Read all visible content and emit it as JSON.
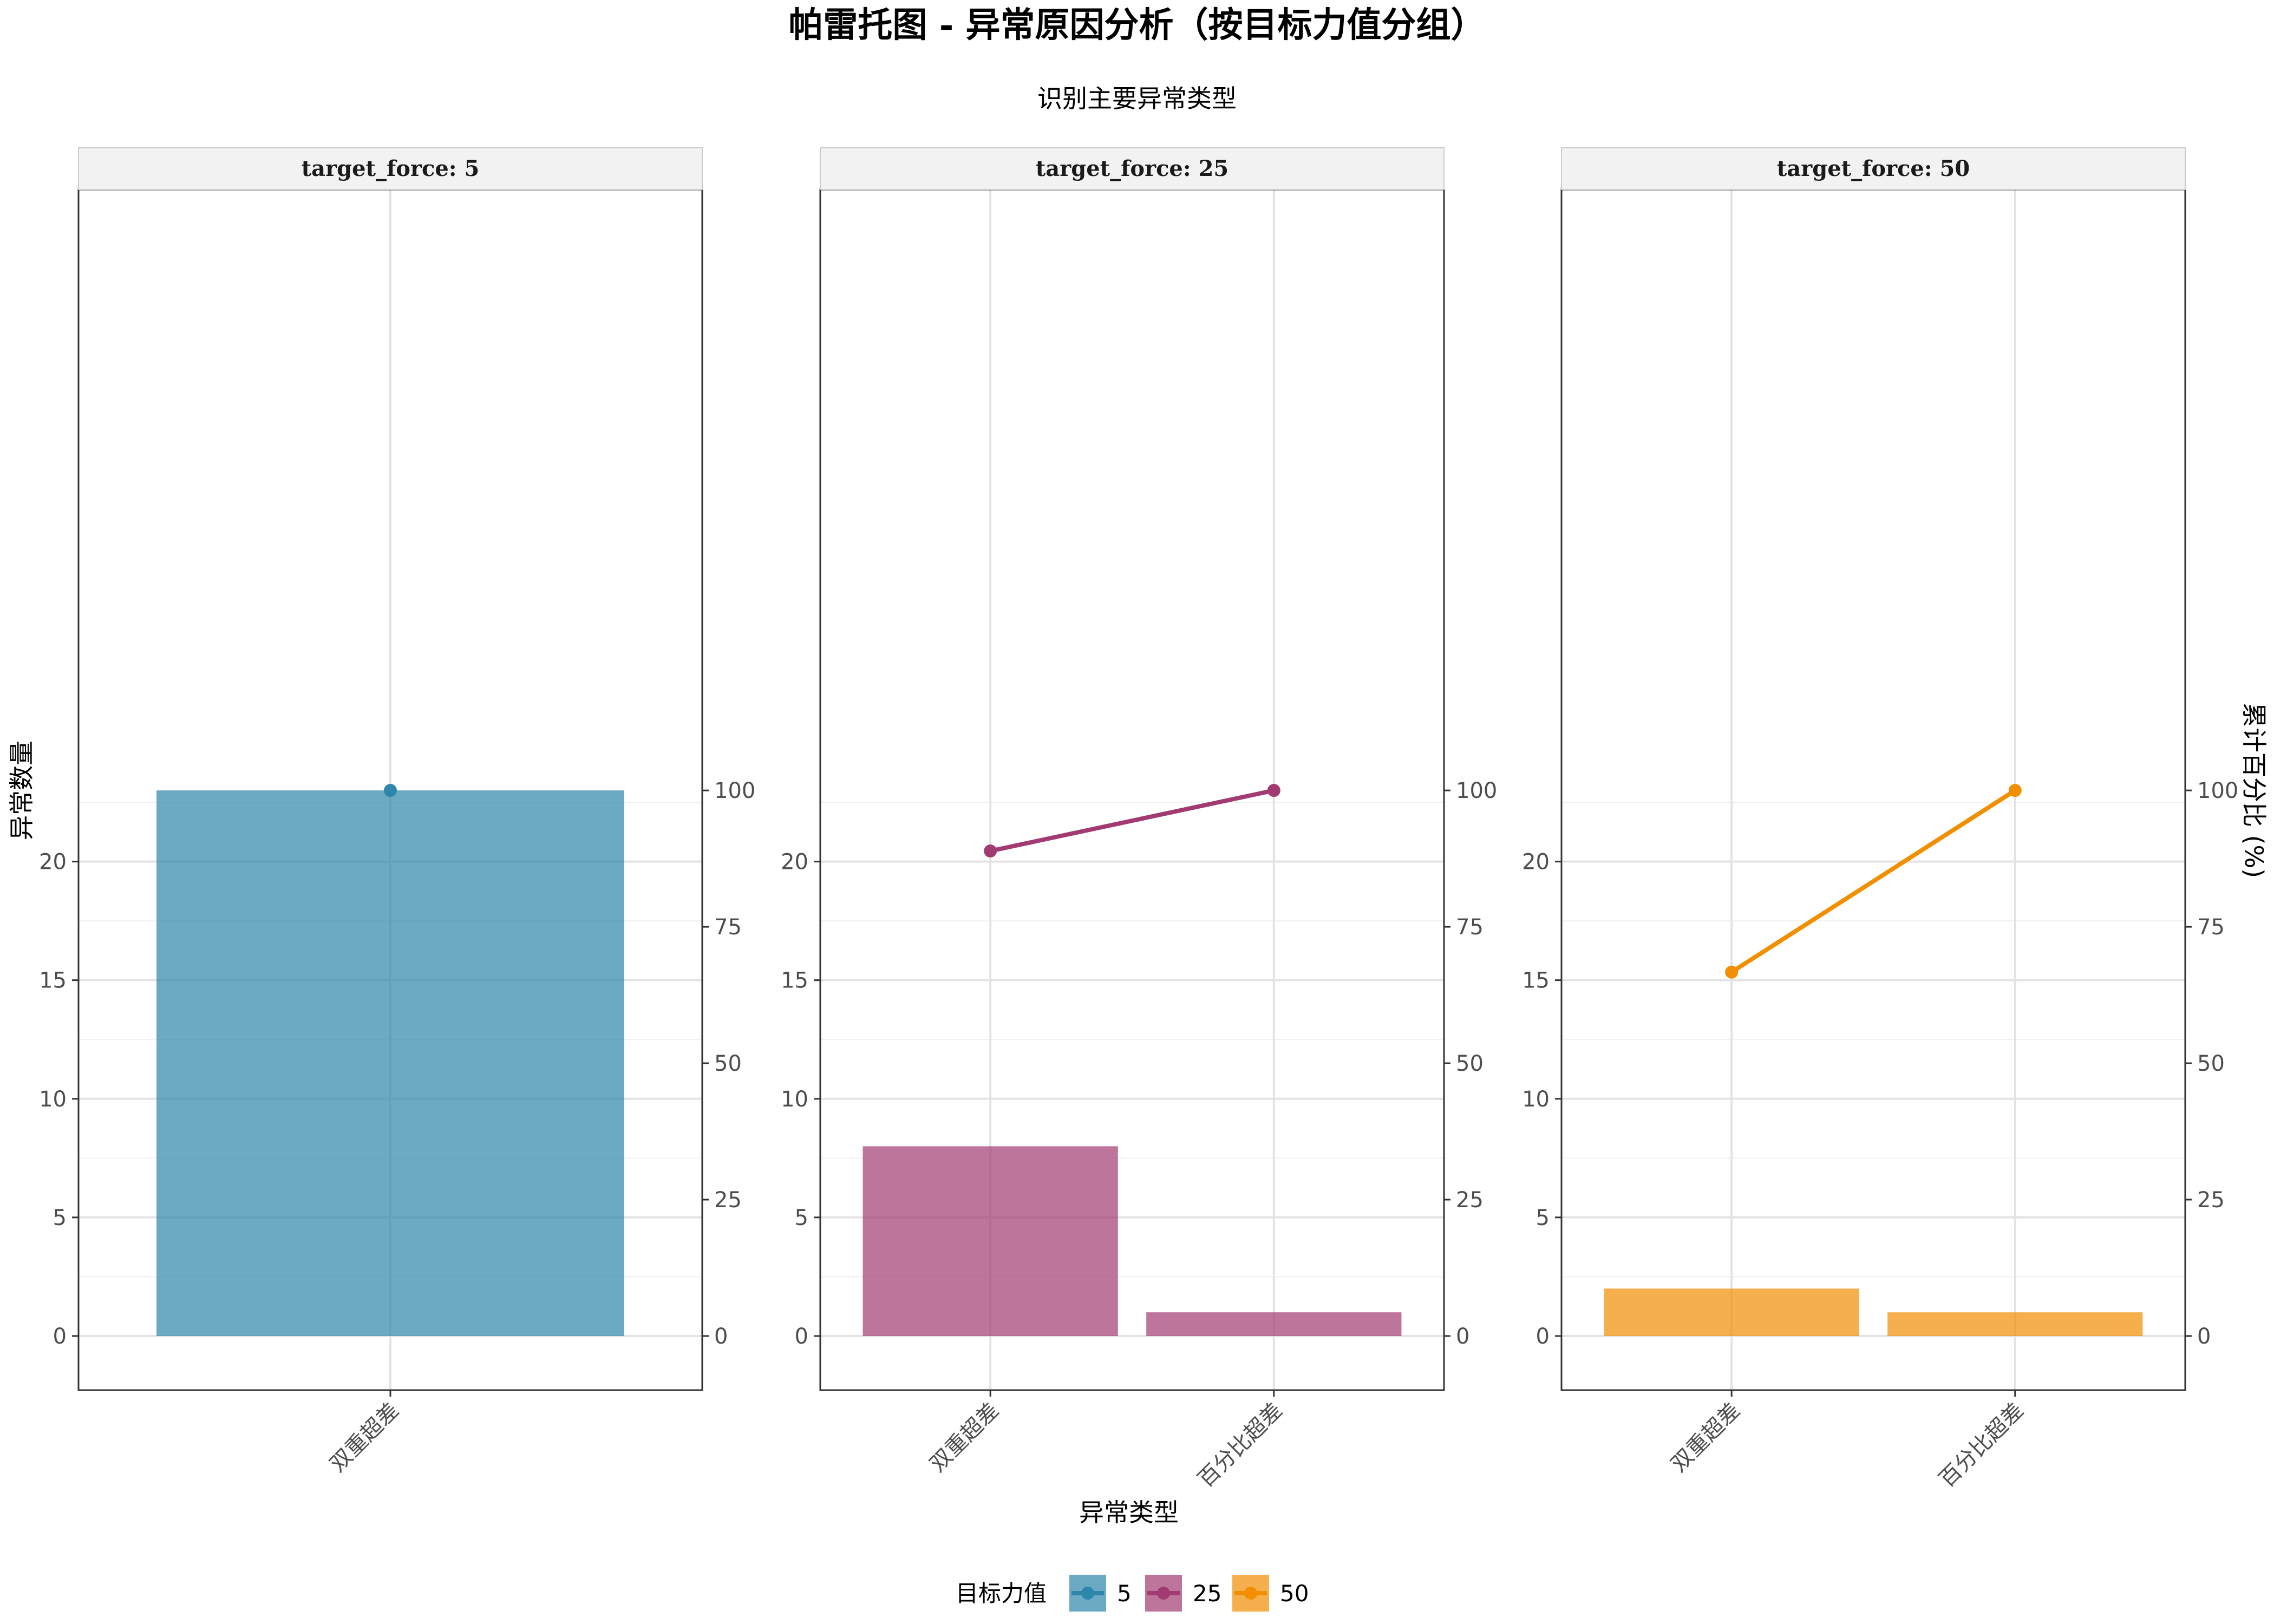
{
  "chart_data": {
    "type": "bar",
    "title": "帕雷托图 - 异常原因分析（按目标力值分组）",
    "subtitle": "识别主要异常类型",
    "xlabel": "异常类型",
    "ylabel": "异常数量",
    "ylabel_right": "累计百分比 (%)",
    "ylim": [
      -1.13,
      24.1
    ],
    "yticks": [
      0,
      5,
      10,
      15,
      20
    ],
    "ylim_right": [
      0,
      100
    ],
    "yticks_right": [
      0,
      25,
      50,
      75,
      100
    ],
    "grid": true,
    "legend": {
      "title": "目标力值",
      "position": "bottom",
      "entries": [
        {
          "label": "5",
          "color": "#2E86AB"
        },
        {
          "label": "25",
          "color": "#A23B72"
        },
        {
          "label": "50",
          "color": "#F18F01"
        }
      ]
    },
    "panels": [
      {
        "strip": "target_force: 5",
        "color": "#2E86AB",
        "categories": [
          "双重超差"
        ],
        "counts": [
          23
        ],
        "cumulative_percent": [
          100
        ]
      },
      {
        "strip": "target_force: 25",
        "color": "#A23B72",
        "categories": [
          "双重超差",
          "百分比超差"
        ],
        "counts": [
          8,
          1
        ],
        "cumulative_percent": [
          88.9,
          100
        ]
      },
      {
        "strip": "target_force: 50",
        "color": "#F18F01",
        "categories": [
          "双重超差",
          "百分比超差"
        ],
        "counts": [
          2,
          1
        ],
        "cumulative_percent": [
          66.7,
          100
        ]
      }
    ]
  }
}
